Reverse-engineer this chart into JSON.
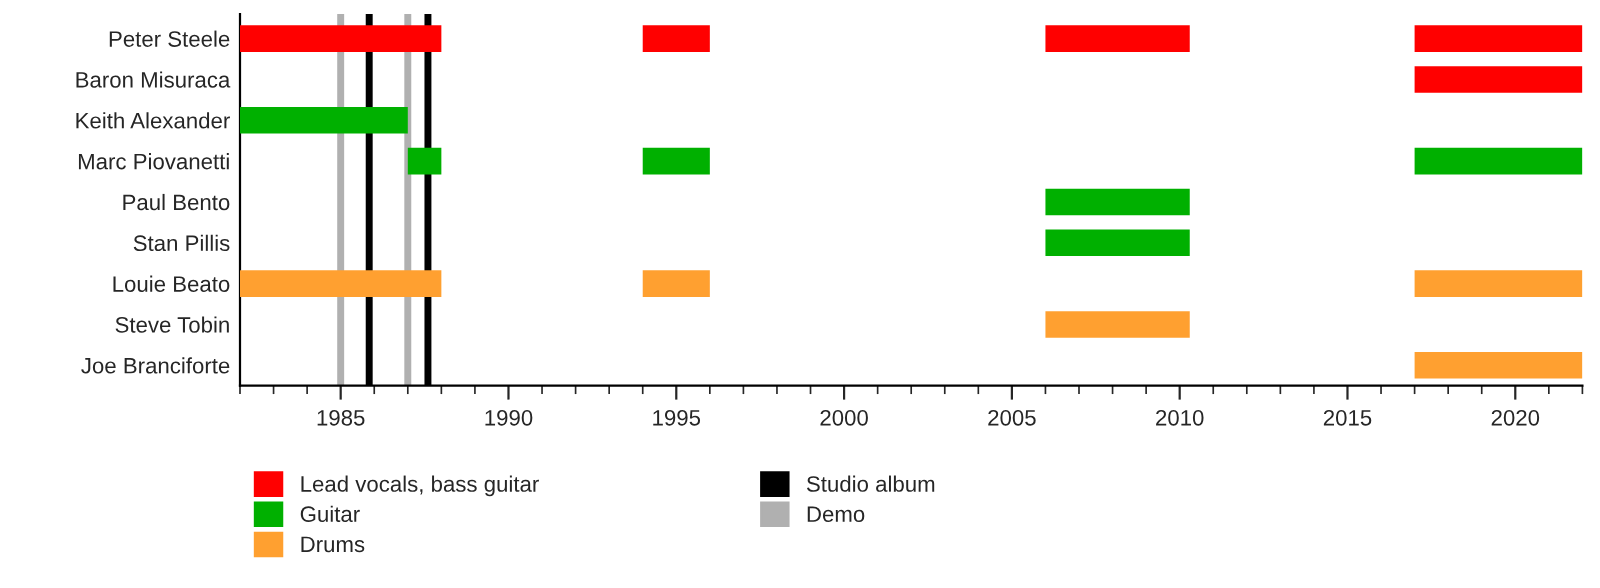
{
  "chart_data": {
    "type": "bar",
    "orientation": "horizontal",
    "categories": [
      "Peter Steele",
      "Baron Misuraca",
      "Keith Alexander",
      "Marc Piovanetti",
      "Paul Bento",
      "Stan Pillis",
      "Louie Beato",
      "Steve Tobin",
      "Joe Branciforte"
    ],
    "series": [
      {
        "name": "Lead vocals, bass guitar",
        "color": "#ff0000",
        "base": [
          1982,
          2017,
          null,
          null,
          null,
          null,
          null,
          null,
          null
        ],
        "values": [
          6,
          5,
          null,
          null,
          null,
          null,
          null,
          null,
          null
        ]
      },
      {
        "color": "#ff0000",
        "base": [
          1994,
          null,
          null,
          null,
          null,
          null,
          null,
          null,
          null
        ],
        "values": [
          2,
          null,
          null,
          null,
          null,
          null,
          null,
          null,
          null
        ]
      },
      {
        "color": "#ff0000",
        "base": [
          2006,
          null,
          null,
          null,
          null,
          null,
          null,
          null,
          null
        ],
        "values": [
          4.3,
          null,
          null,
          null,
          null,
          null,
          null,
          null,
          null
        ]
      },
      {
        "color": "#ff0000",
        "base": [
          2017,
          null,
          null,
          null,
          null,
          null,
          null,
          null,
          null
        ],
        "values": [
          5,
          null,
          null,
          null,
          null,
          null,
          null,
          null,
          null
        ]
      },
      {
        "name": "Guitar",
        "color": "#00b000",
        "base": [
          null,
          null,
          1982,
          1987,
          2006,
          2006,
          null,
          null,
          null
        ],
        "values": [
          null,
          null,
          5,
          1,
          4.3,
          4.3,
          null,
          null,
          null
        ]
      },
      {
        "color": "#00b000",
        "base": [
          null,
          null,
          null,
          1994,
          null,
          null,
          null,
          null,
          null
        ],
        "values": [
          null,
          null,
          null,
          2,
          null,
          null,
          null,
          null,
          null
        ]
      },
      {
        "color": "#00b000",
        "base": [
          null,
          null,
          null,
          2017,
          null,
          null,
          null,
          null,
          null
        ],
        "values": [
          null,
          null,
          null,
          5,
          null,
          null,
          null,
          null,
          null
        ]
      },
      {
        "name": "Drums",
        "color": "#ffa030",
        "base": [
          null,
          null,
          null,
          null,
          null,
          null,
          1982,
          2006,
          2017
        ],
        "values": [
          null,
          null,
          null,
          null,
          null,
          null,
          6,
          4.3,
          5
        ]
      },
      {
        "color": "#ffa030",
        "base": [
          null,
          null,
          null,
          null,
          null,
          null,
          1994,
          null,
          null
        ],
        "values": [
          null,
          null,
          null,
          null,
          null,
          null,
          2,
          null,
          null
        ]
      },
      {
        "color": "#ffa030",
        "base": [
          null,
          null,
          null,
          null,
          null,
          null,
          2017,
          null,
          null
        ],
        "values": [
          null,
          null,
          null,
          null,
          null,
          null,
          5,
          null,
          null
        ]
      }
    ],
    "ref_lines": [
      {
        "axis": "x",
        "value": 1985.85,
        "label": "Studio album",
        "color": "#000000"
      },
      {
        "axis": "x",
        "value": 1987.6,
        "color": "#000000"
      },
      {
        "axis": "x",
        "value": 1985,
        "label": "Demo",
        "color": "#b0b0b0"
      },
      {
        "axis": "x",
        "value": 1987,
        "color": "#b0b0b0"
      }
    ],
    "xlim": [
      1982,
      2022
    ],
    "xticks": [
      1985,
      1990,
      1995,
      2000,
      2005,
      2010,
      2015,
      2020
    ],
    "grid": false,
    "legend": "bottom"
  }
}
